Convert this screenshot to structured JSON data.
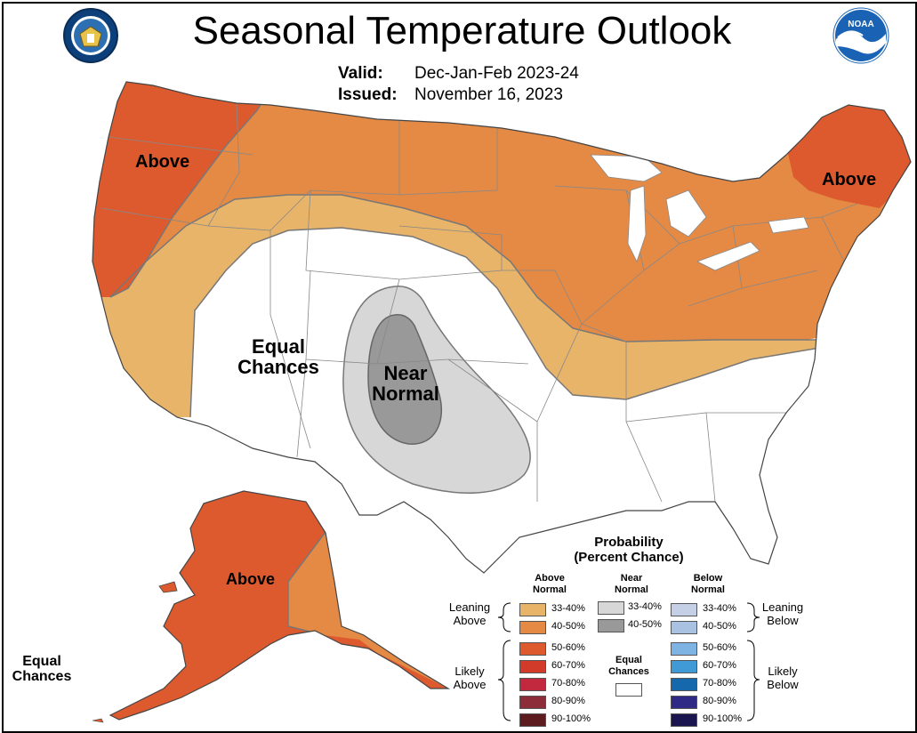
{
  "title": "Seasonal Temperature Outlook",
  "valid": {
    "label": "Valid:",
    "value": "Dec-Jan-Feb 2023-24"
  },
  "issued": {
    "label": "Issued:",
    "value": "November 16, 2023"
  },
  "logos": {
    "left": "commerce-seal",
    "right": "noaa-logo",
    "noaa_text": "NOAA"
  },
  "regions": {
    "above_west": "Above",
    "above_east": "Above",
    "above_alaska": "Above",
    "equal_chances_line1": "Equal",
    "equal_chances_line2": "Chances",
    "near_normal_line1": "Near",
    "near_normal_line2": "Normal",
    "hawaii_equal_line1": "Equal",
    "hawaii_equal_line2": "Chances"
  },
  "colors": {
    "above_33_40": "#e8b46a",
    "above_40_50": "#e48a44",
    "above_50_60": "#dd5a2f",
    "above_60_70": "#d23a2a",
    "above_70_80": "#c2283e",
    "above_80_90": "#8e2d3a",
    "above_90_100": "#5c1c20",
    "near_33_40": "#d7d7d7",
    "near_40_50": "#999999",
    "below_33_40": "#c5cfe6",
    "below_40_50": "#a9c2e2",
    "below_50_60": "#7db4e3",
    "below_60_70": "#3f9ad6",
    "below_70_80": "#1668ac",
    "below_80_90": "#2f2a86",
    "below_90_100": "#1c1650"
  },
  "legend": {
    "title_line1": "Probability",
    "title_line2": "(Percent Chance)",
    "col_above_1": "Above",
    "col_above_2": "Normal",
    "col_near_1": "Near",
    "col_near_2": "Normal",
    "col_below_1": "Below",
    "col_below_2": "Normal",
    "leaning_above_1": "Leaning",
    "leaning_above_2": "Above",
    "likely_above_1": "Likely",
    "likely_above_2": "Above",
    "leaning_below_1": "Leaning",
    "leaning_below_2": "Below",
    "likely_below_1": "Likely",
    "likely_below_2": "Below",
    "equal_1": "Equal",
    "equal_2": "Chances",
    "ranges": [
      "33-40%",
      "40-50%",
      "50-60%",
      "60-70%",
      "70-80%",
      "80-90%",
      "90-100%"
    ]
  }
}
